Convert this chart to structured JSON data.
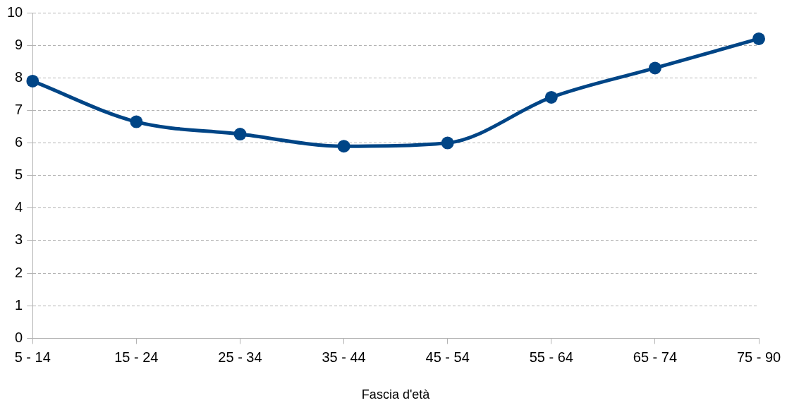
{
  "chart_data": {
    "type": "line",
    "xlabel": "Fascia d'età",
    "categories": [
      "5 - 14",
      "15 - 24",
      "25 - 34",
      "35 - 44",
      "45 - 54",
      "55 - 64",
      "65 - 74",
      "75 - 90"
    ],
    "series": [
      {
        "color": "#004586",
        "values": [
          7.9,
          6.65,
          6.27,
          5.9,
          6.0,
          7.4,
          8.3,
          9.2
        ]
      }
    ],
    "ylim": [
      0,
      10
    ],
    "yticks": [
      0,
      1,
      2,
      3,
      4,
      5,
      6,
      7,
      8,
      9,
      10
    ],
    "grid": "y",
    "legend": false,
    "marker": "circle",
    "line_style": "solid"
  }
}
